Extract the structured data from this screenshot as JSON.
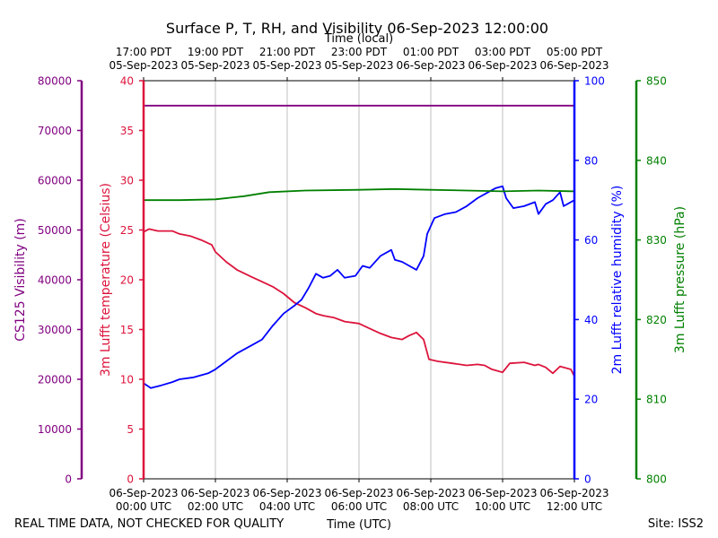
{
  "chart_data": {
    "type": "line",
    "title": "Surface P, T, RH, and Visibility 06-Sep-2023 12:00:00",
    "top_axis_label": "Time (local)",
    "xlabel": "Time (UTC)",
    "footer_left": "REAL TIME DATA, NOT CHECKED FOR QUALITY",
    "footer_right": "Site: ISS2",
    "x_range_hours_utc": [
      0,
      12
    ],
    "x_ticks_hours": [
      0,
      2,
      4,
      6,
      8,
      10,
      12
    ],
    "x_tick_labels_utc": [
      [
        "06-Sep-2023",
        "00:00 UTC"
      ],
      [
        "06-Sep-2023",
        "02:00 UTC"
      ],
      [
        "06-Sep-2023",
        "04:00 UTC"
      ],
      [
        "06-Sep-2023",
        "06:00 UTC"
      ],
      [
        "06-Sep-2023",
        "08:00 UTC"
      ],
      [
        "06-Sep-2023",
        "10:00 UTC"
      ],
      [
        "06-Sep-2023",
        "12:00 UTC"
      ]
    ],
    "x_tick_labels_local": [
      [
        "17:00 PDT",
        "05-Sep-2023"
      ],
      [
        "19:00 PDT",
        "05-Sep-2023"
      ],
      [
        "21:00 PDT",
        "05-Sep-2023"
      ],
      [
        "23:00 PDT",
        "05-Sep-2023"
      ],
      [
        "01:00 PDT",
        "06-Sep-2023"
      ],
      [
        "03:00 PDT",
        "06-Sep-2023"
      ],
      [
        "05:00 PDT",
        "06-Sep-2023"
      ]
    ],
    "grid": "vertical",
    "axes": {
      "visibility": {
        "label": "CS125 Visibility (m)",
        "range": [
          0,
          80000
        ],
        "ticks": [
          0,
          10000,
          20000,
          30000,
          40000,
          50000,
          60000,
          70000,
          80000
        ],
        "color": "#800080"
      },
      "temperature": {
        "label": "3m Lufft temperature (Celsius)",
        "range": [
          0,
          40
        ],
        "ticks": [
          0,
          5,
          10,
          15,
          20,
          25,
          30,
          35,
          40
        ],
        "color": "#dc143c"
      },
      "humidity": {
        "label": "2m Lufft relative humidity (%)",
        "range": [
          0,
          100
        ],
        "ticks": [
          0,
          20,
          40,
          60,
          80,
          100
        ],
        "color": "#0000ff"
      },
      "pressure": {
        "label": "3m Lufft pressure (hPa)",
        "range": [
          800,
          850
        ],
        "ticks": [
          800,
          810,
          820,
          830,
          840,
          850
        ],
        "color": "#008000"
      }
    },
    "series": [
      {
        "axis": "visibility",
        "color": "#800080",
        "points": [
          [
            0,
            75000
          ],
          [
            12,
            75000
          ]
        ]
      },
      {
        "axis": "temperature",
        "color": "#dc143c",
        "points": [
          [
            0,
            24.8
          ],
          [
            0.15,
            25.1
          ],
          [
            0.4,
            24.9
          ],
          [
            0.8,
            24.9
          ],
          [
            1.0,
            24.6
          ],
          [
            1.3,
            24.4
          ],
          [
            1.6,
            24.0
          ],
          [
            1.9,
            23.5
          ],
          [
            2.0,
            22.8
          ],
          [
            2.3,
            21.8
          ],
          [
            2.6,
            21.0
          ],
          [
            3.0,
            20.3
          ],
          [
            3.3,
            19.8
          ],
          [
            3.6,
            19.3
          ],
          [
            3.9,
            18.6
          ],
          [
            4.2,
            17.7
          ],
          [
            4.5,
            17.2
          ],
          [
            4.8,
            16.6
          ],
          [
            5.0,
            16.4
          ],
          [
            5.3,
            16.2
          ],
          [
            5.6,
            15.8
          ],
          [
            6.0,
            15.6
          ],
          [
            6.3,
            15.1
          ],
          [
            6.6,
            14.6
          ],
          [
            6.9,
            14.2
          ],
          [
            7.2,
            14.0
          ],
          [
            7.4,
            14.4
          ],
          [
            7.6,
            14.7
          ],
          [
            7.8,
            14.0
          ],
          [
            7.95,
            12.0
          ],
          [
            8.2,
            11.8
          ],
          [
            8.6,
            11.6
          ],
          [
            9.0,
            11.4
          ],
          [
            9.3,
            11.5
          ],
          [
            9.5,
            11.4
          ],
          [
            9.7,
            11.0
          ],
          [
            10.0,
            10.7
          ],
          [
            10.2,
            11.6
          ],
          [
            10.6,
            11.7
          ],
          [
            10.9,
            11.4
          ],
          [
            11.0,
            11.5
          ],
          [
            11.2,
            11.2
          ],
          [
            11.4,
            10.6
          ],
          [
            11.6,
            11.3
          ],
          [
            11.9,
            11.0
          ],
          [
            12.0,
            10.3
          ]
        ]
      },
      {
        "axis": "humidity",
        "color": "#0000ff",
        "points": [
          [
            0,
            24.0
          ],
          [
            0.2,
            22.8
          ],
          [
            0.5,
            23.5
          ],
          [
            0.8,
            24.3
          ],
          [
            1.0,
            25.0
          ],
          [
            1.4,
            25.5
          ],
          [
            1.8,
            26.5
          ],
          [
            2.0,
            27.5
          ],
          [
            2.3,
            29.5
          ],
          [
            2.6,
            31.5
          ],
          [
            3.0,
            33.5
          ],
          [
            3.3,
            35.0
          ],
          [
            3.6,
            38.5
          ],
          [
            3.9,
            41.5
          ],
          [
            4.2,
            43.5
          ],
          [
            4.4,
            45.0
          ],
          [
            4.6,
            48.0
          ],
          [
            4.8,
            51.5
          ],
          [
            5.0,
            50.5
          ],
          [
            5.2,
            51.0
          ],
          [
            5.4,
            52.5
          ],
          [
            5.6,
            50.5
          ],
          [
            5.9,
            51.0
          ],
          [
            6.1,
            53.5
          ],
          [
            6.3,
            53.0
          ],
          [
            6.6,
            56.0
          ],
          [
            6.9,
            57.5
          ],
          [
            7.0,
            55.0
          ],
          [
            7.2,
            54.5
          ],
          [
            7.4,
            53.5
          ],
          [
            7.6,
            52.5
          ],
          [
            7.8,
            56.0
          ],
          [
            7.9,
            61.5
          ],
          [
            8.1,
            65.5
          ],
          [
            8.4,
            66.5
          ],
          [
            8.7,
            67.0
          ],
          [
            9.0,
            68.5
          ],
          [
            9.3,
            70.5
          ],
          [
            9.6,
            72.0
          ],
          [
            9.8,
            73.0
          ],
          [
            10.0,
            73.5
          ],
          [
            10.1,
            70.5
          ],
          [
            10.3,
            68.0
          ],
          [
            10.6,
            68.5
          ],
          [
            10.9,
            69.5
          ],
          [
            11.0,
            66.5
          ],
          [
            11.2,
            69.0
          ],
          [
            11.4,
            70.0
          ],
          [
            11.6,
            72.0
          ],
          [
            11.7,
            68.5
          ],
          [
            12.0,
            70.0
          ],
          [
            12.0,
            72.0
          ]
        ]
      },
      {
        "axis": "pressure",
        "color": "#008000",
        "points": [
          [
            0,
            835.0
          ],
          [
            1.0,
            835.0
          ],
          [
            2.0,
            835.1
          ],
          [
            2.8,
            835.5
          ],
          [
            3.5,
            836.0
          ],
          [
            4.5,
            836.2
          ],
          [
            6.0,
            836.3
          ],
          [
            7.0,
            836.4
          ],
          [
            8.0,
            836.3
          ],
          [
            9.0,
            836.2
          ],
          [
            10.0,
            836.1
          ],
          [
            11.0,
            836.2
          ],
          [
            12.0,
            836.1
          ]
        ]
      }
    ]
  }
}
